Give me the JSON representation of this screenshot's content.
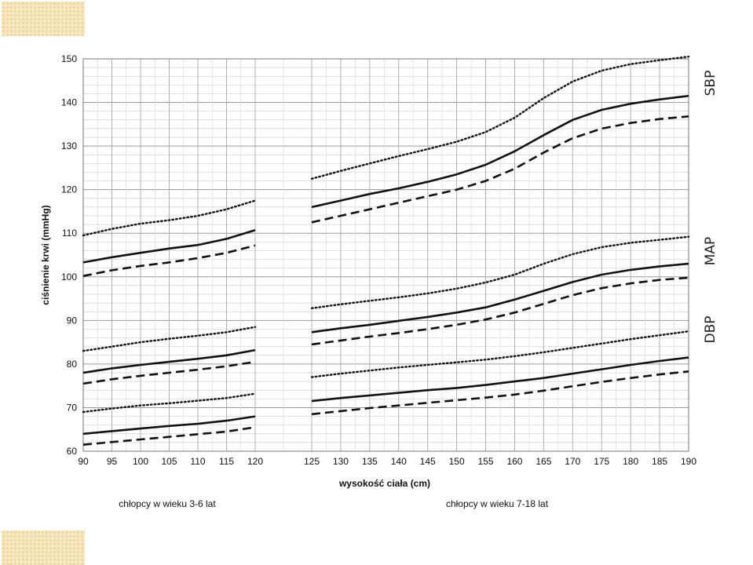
{
  "chart_data": {
    "type": "line",
    "xlabel": "wysokość ciała (cm)",
    "ylabel": "ciśnienie krwi (mmHg)",
    "ylim": [
      60,
      150
    ],
    "y_ticks": [
      60,
      70,
      80,
      90,
      100,
      110,
      120,
      130,
      140,
      150
    ],
    "grid": true,
    "panels": [
      {
        "label": "chłopcy w wieku 3-6 lat",
        "x_ticks": [
          90,
          95,
          100,
          105,
          110,
          115,
          120
        ],
        "xlim": [
          90,
          120
        ]
      },
      {
        "label": "chłopcy w wieku 7-18 lat",
        "x_ticks": [
          125,
          130,
          135,
          140,
          145,
          150,
          155,
          160,
          165,
          170,
          175,
          180,
          185,
          190
        ],
        "xlim": [
          125,
          190
        ]
      }
    ],
    "group_labels": [
      "SBP",
      "MAP",
      "DBP"
    ],
    "series": [
      {
        "group": "SBP",
        "style": "dotted",
        "panel": 0,
        "x": [
          90,
          95,
          100,
          105,
          110,
          115,
          120
        ],
        "values": [
          109.5,
          111,
          112.2,
          113,
          114,
          115.5,
          117.5
        ]
      },
      {
        "group": "SBP",
        "style": "solid",
        "panel": 0,
        "x": [
          90,
          95,
          100,
          105,
          110,
          115,
          120
        ],
        "values": [
          103.3,
          104.5,
          105.5,
          106.5,
          107.3,
          108.7,
          110.7
        ]
      },
      {
        "group": "SBP",
        "style": "dashed",
        "panel": 0,
        "x": [
          90,
          95,
          100,
          105,
          110,
          115,
          120
        ],
        "values": [
          100.2,
          101.5,
          102.5,
          103.3,
          104.3,
          105.5,
          107.2
        ]
      },
      {
        "group": "MAP",
        "style": "dotted",
        "panel": 0,
        "x": [
          90,
          95,
          100,
          105,
          110,
          115,
          120
        ],
        "values": [
          83,
          84,
          85,
          85.8,
          86.5,
          87.3,
          88.5
        ]
      },
      {
        "group": "MAP",
        "style": "solid",
        "panel": 0,
        "x": [
          90,
          95,
          100,
          105,
          110,
          115,
          120
        ],
        "values": [
          78,
          79,
          79.8,
          80.5,
          81.2,
          82,
          83.2
        ]
      },
      {
        "group": "MAP",
        "style": "dashed",
        "panel": 0,
        "x": [
          90,
          95,
          100,
          105,
          110,
          115,
          120
        ],
        "values": [
          75.5,
          76.5,
          77.3,
          78,
          78.7,
          79.5,
          80.5
        ]
      },
      {
        "group": "DBP",
        "style": "dotted",
        "panel": 0,
        "x": [
          90,
          95,
          100,
          105,
          110,
          115,
          120
        ],
        "values": [
          69,
          69.8,
          70.5,
          71,
          71.6,
          72.2,
          73.2
        ]
      },
      {
        "group": "DBP",
        "style": "solid",
        "panel": 0,
        "x": [
          90,
          95,
          100,
          105,
          110,
          115,
          120
        ],
        "values": [
          64,
          64.6,
          65.2,
          65.8,
          66.3,
          67,
          68
        ]
      },
      {
        "group": "DBP",
        "style": "dashed",
        "panel": 0,
        "x": [
          90,
          95,
          100,
          105,
          110,
          115,
          120
        ],
        "values": [
          61.5,
          62.1,
          62.7,
          63.3,
          63.9,
          64.5,
          65.5
        ]
      },
      {
        "group": "SBP",
        "style": "dotted",
        "panel": 1,
        "x": [
          125,
          130,
          135,
          140,
          145,
          150,
          155,
          160,
          165,
          170,
          175,
          180,
          185,
          190
        ],
        "values": [
          122.5,
          124.3,
          126,
          127.7,
          129.3,
          131,
          133.2,
          136.5,
          141,
          144.8,
          147.3,
          148.8,
          149.7,
          150.5
        ]
      },
      {
        "group": "SBP",
        "style": "solid",
        "panel": 1,
        "x": [
          125,
          130,
          135,
          140,
          145,
          150,
          155,
          160,
          165,
          170,
          175,
          180,
          185,
          190
        ],
        "values": [
          116,
          117.5,
          119,
          120.3,
          121.8,
          123.5,
          125.7,
          128.8,
          132.5,
          136,
          138.3,
          139.7,
          140.7,
          141.5
        ]
      },
      {
        "group": "SBP",
        "style": "dashed",
        "panel": 1,
        "x": [
          125,
          130,
          135,
          140,
          145,
          150,
          155,
          160,
          165,
          170,
          175,
          180,
          185,
          190
        ],
        "values": [
          112.5,
          114,
          115.5,
          117,
          118.5,
          120,
          122,
          124.8,
          128.5,
          131.8,
          134,
          135.3,
          136.2,
          136.8
        ]
      },
      {
        "group": "MAP",
        "style": "dotted",
        "panel": 1,
        "x": [
          125,
          130,
          135,
          140,
          145,
          150,
          155,
          160,
          165,
          170,
          175,
          180,
          185,
          190
        ],
        "values": [
          92.8,
          93.7,
          94.5,
          95.3,
          96.2,
          97.3,
          98.7,
          100.5,
          103,
          105.2,
          106.8,
          107.8,
          108.5,
          109.2
        ]
      },
      {
        "group": "MAP",
        "style": "solid",
        "panel": 1,
        "x": [
          125,
          130,
          135,
          140,
          145,
          150,
          155,
          160,
          165,
          170,
          175,
          180,
          185,
          190
        ],
        "values": [
          87.3,
          88.2,
          89,
          89.9,
          90.8,
          91.8,
          93,
          94.8,
          96.8,
          98.8,
          100.5,
          101.6,
          102.4,
          103
        ]
      },
      {
        "group": "MAP",
        "style": "dashed",
        "panel": 1,
        "x": [
          125,
          130,
          135,
          140,
          145,
          150,
          155,
          160,
          165,
          170,
          175,
          180,
          185,
          190
        ],
        "values": [
          84.5,
          85.4,
          86.3,
          87.1,
          88,
          89,
          90.2,
          91.8,
          93.8,
          95.8,
          97.4,
          98.5,
          99.3,
          99.8
        ]
      },
      {
        "group": "DBP",
        "style": "dotted",
        "panel": 1,
        "x": [
          125,
          130,
          135,
          140,
          145,
          150,
          155,
          160,
          165,
          170,
          175,
          180,
          185,
          190
        ],
        "values": [
          77,
          77.8,
          78.5,
          79.2,
          79.8,
          80.4,
          81,
          81.8,
          82.7,
          83.7,
          84.7,
          85.7,
          86.6,
          87.5
        ]
      },
      {
        "group": "DBP",
        "style": "solid",
        "panel": 1,
        "x": [
          125,
          130,
          135,
          140,
          145,
          150,
          155,
          160,
          165,
          170,
          175,
          180,
          185,
          190
        ],
        "values": [
          71.5,
          72.2,
          72.8,
          73.4,
          74,
          74.5,
          75.2,
          76,
          76.8,
          77.8,
          78.8,
          79.8,
          80.7,
          81.5
        ]
      },
      {
        "group": "DBP",
        "style": "dashed",
        "panel": 1,
        "x": [
          125,
          130,
          135,
          140,
          145,
          150,
          155,
          160,
          165,
          170,
          175,
          180,
          185,
          190
        ],
        "values": [
          68.5,
          69.2,
          69.9,
          70.5,
          71.1,
          71.7,
          72.3,
          73,
          73.9,
          74.9,
          75.9,
          76.8,
          77.6,
          78.3
        ]
      }
    ]
  }
}
